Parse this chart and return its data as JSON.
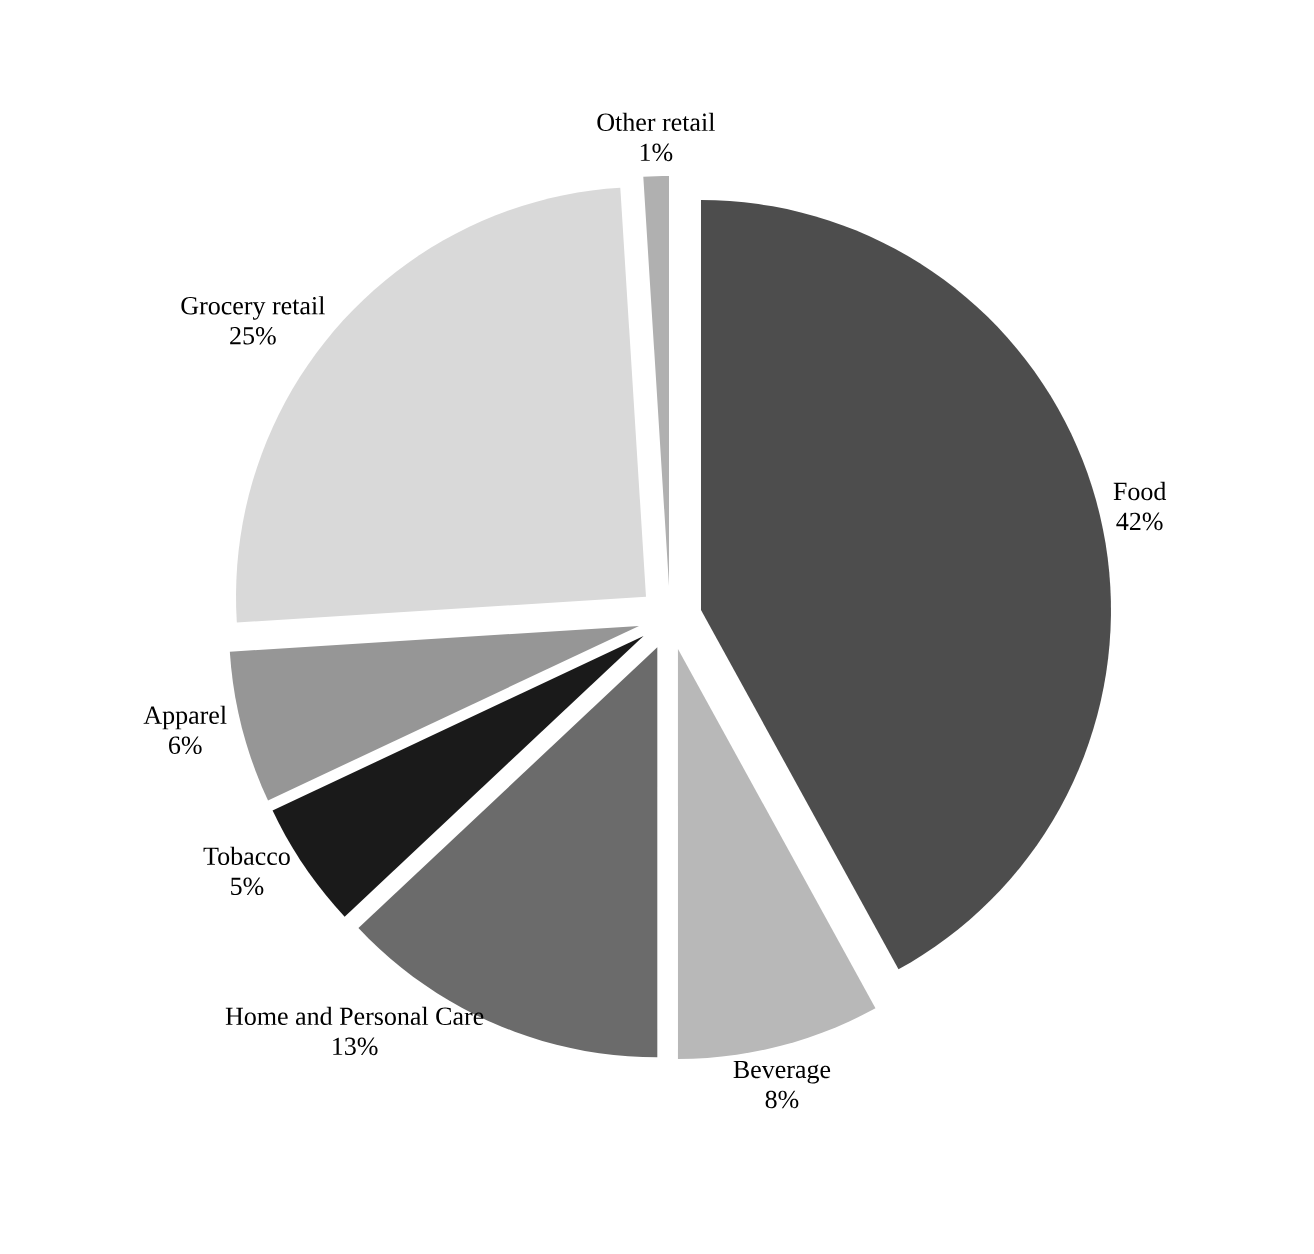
{
  "chart_data": {
    "type": "pie",
    "categories": [
      "Food",
      "Beverage",
      "Home and Personal Care",
      "Tobacco",
      "Apparel",
      "Grocery retail",
      "Other retail"
    ],
    "values": [
      42,
      8,
      13,
      5,
      6,
      25,
      1
    ],
    "value_labels": [
      "42%",
      "8%",
      "13%",
      "5%",
      "6%",
      "25%",
      "1%"
    ],
    "colors": [
      "#4d4d4d",
      "#b8b8b8",
      "#6b6b6b",
      "#1a1a1a",
      "#969696",
      "#d9d9d9",
      "#b0b0b0"
    ]
  }
}
